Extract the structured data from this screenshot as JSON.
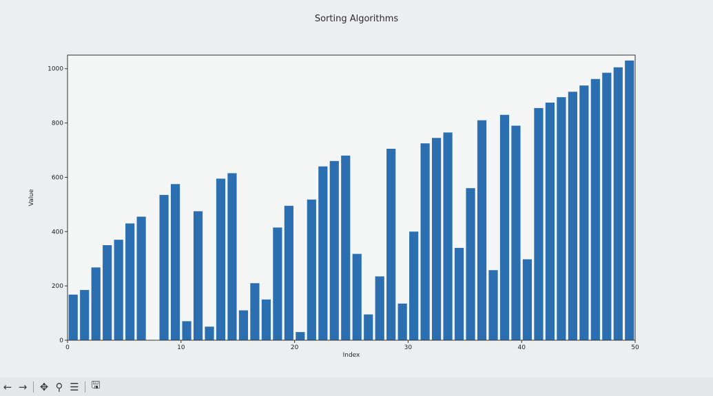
{
  "chart_data": {
    "type": "bar",
    "title": "Sorting Algorithms",
    "xlabel": "Index",
    "ylabel": "Value",
    "xlim": [
      0,
      50
    ],
    "ylim": [
      0,
      1050
    ],
    "xticks": [
      0,
      10,
      20,
      30,
      40,
      50
    ],
    "yticks": [
      0,
      200,
      400,
      600,
      800,
      1000
    ],
    "bar_color": "#2c6fb0",
    "values": [
      168,
      185,
      268,
      350,
      370,
      430,
      455,
      0,
      535,
      575,
      70,
      475,
      50,
      595,
      615,
      110,
      210,
      150,
      415,
      495,
      30,
      518,
      640,
      660,
      680,
      318,
      95,
      235,
      705,
      135,
      400,
      725,
      745,
      765,
      340,
      560,
      810,
      258,
      830,
      790,
      298,
      855,
      875,
      895,
      915,
      938,
      962,
      985,
      1005,
      1030
    ]
  },
  "toolbar": {
    "back": "←",
    "forward": "→",
    "pan": "✥",
    "zoom": "⚲",
    "configure": "☰",
    "save": "🖫"
  }
}
